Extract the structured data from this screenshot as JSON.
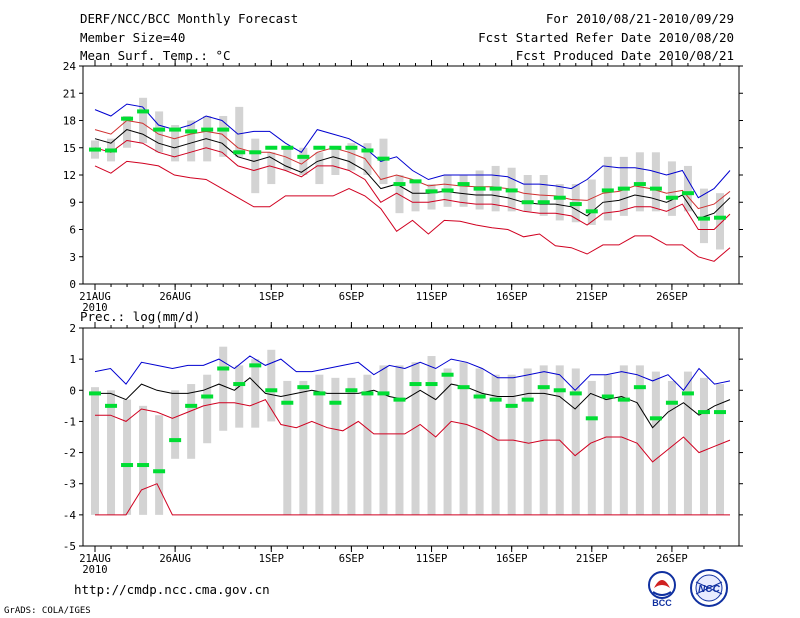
{
  "header": {
    "title": "DERF/NCC/BCC Monthly Forecast",
    "member_size": "Member Size=40",
    "variable": "Mean Surf. Temp.: °C",
    "period": "For 2010/08/21-2010/09/29",
    "start_date": "Fcst Started Refer Date 2010/08/20",
    "produced_date": "Fcst Produced Date 2010/08/21"
  },
  "footer": {
    "url": "http://cmdp.ncc.cma.gov.cn",
    "credit": "GrADS: COLA/IGES",
    "logo_bcc": "BCC",
    "logo_ncc": "NCC"
  },
  "colors": {
    "box": "#d3d3d3",
    "median": "#00dd33",
    "mean": "#000000",
    "upper": "#0000d0",
    "lower": "#d00020",
    "axis": "#000000"
  },
  "chart_data": [
    {
      "type": "line",
      "title": "Mean Surf. Temp.: °C",
      "ylim": [
        0,
        24
      ],
      "yticks": [
        0,
        3,
        6,
        9,
        12,
        15,
        18,
        21,
        24
      ],
      "x_day_range": [
        1,
        40
      ],
      "xticks": [
        {
          "day": 1,
          "label": "21AUG",
          "sublabel": "2010"
        },
        {
          "day": 6,
          "label": "26AUG"
        },
        {
          "day": 12,
          "label": "1SEP"
        },
        {
          "day": 17,
          "label": "6SEP"
        },
        {
          "day": 22,
          "label": "11SEP"
        },
        {
          "day": 27,
          "label": "16SEP"
        },
        {
          "day": 32,
          "label": "21SEP"
        },
        {
          "day": 37,
          "label": "26SEP"
        }
      ],
      "box_low": [
        13.8,
        13.5,
        15.0,
        15.5,
        14.5,
        13.5,
        13.5,
        13.5,
        14.0,
        14.0,
        10.0,
        11.0,
        12.5,
        12.0,
        11.0,
        12.0,
        12.5,
        12.0,
        11.0,
        7.8,
        8.0,
        8.2,
        8.5,
        8.5,
        8.2,
        8.0,
        8.0,
        8.0,
        7.5,
        7.0,
        6.8,
        6.5,
        7.0,
        7.5,
        8.0,
        8.0,
        7.5,
        8.0,
        4.5,
        3.8
      ],
      "box_high": [
        15.8,
        16.0,
        18.5,
        20.5,
        19.0,
        17.5,
        18.0,
        18.5,
        18.5,
        19.5,
        16.0,
        14.5,
        15.2,
        15.0,
        14.5,
        15.0,
        15.5,
        15.5,
        16.0,
        12.0,
        11.5,
        11.0,
        12.0,
        12.0,
        12.5,
        13.0,
        12.8,
        12.0,
        12.0,
        11.0,
        11.0,
        11.5,
        14.0,
        14.0,
        14.5,
        14.5,
        13.5,
        13.0,
        10.5,
        10.0
      ],
      "median": [
        14.8,
        14.7,
        18.2,
        19.0,
        17.0,
        17.0,
        16.8,
        17.0,
        17.0,
        14.5,
        14.5,
        15.0,
        15.0,
        14.0,
        15.0,
        15.0,
        15.0,
        14.7,
        13.8,
        11.0,
        11.3,
        10.2,
        10.3,
        11.0,
        10.5,
        10.5,
        10.3,
        9.0,
        9.0,
        9.5,
        8.8,
        8.0,
        10.3,
        10.5,
        11.0,
        10.5,
        9.5,
        10.0,
        7.2,
        7.3
      ],
      "series": [
        {
          "name": "Upper",
          "values": [
            19.2,
            18.5,
            19.8,
            19.5,
            17.5,
            17.0,
            17.5,
            18.5,
            18.0,
            16.5,
            16.8,
            16.8,
            15.5,
            14.5,
            17.0,
            16.5,
            16.0,
            15.0,
            13.5,
            14.0,
            12.5,
            11.5,
            12.0,
            12.0,
            12.0,
            12.0,
            11.8,
            11.0,
            11.0,
            10.8,
            10.5,
            11.5,
            13.0,
            12.8,
            12.8,
            12.5,
            12.0,
            12.5,
            9.5,
            10.5,
            12.5
          ]
        },
        {
          "name": "Upper-mid",
          "values": [
            17.0,
            16.5,
            18.0,
            17.7,
            16.5,
            16.0,
            16.5,
            16.8,
            16.5,
            15.0,
            14.5,
            14.5,
            14.0,
            13.2,
            14.5,
            15.0,
            14.5,
            13.8,
            11.5,
            12.0,
            11.5,
            10.8,
            11.0,
            10.8,
            10.7,
            10.7,
            10.5,
            10.0,
            9.8,
            9.7,
            9.3,
            9.2,
            10.0,
            10.2,
            10.8,
            10.5,
            10.0,
            10.3,
            8.3,
            8.8,
            10.2
          ]
        },
        {
          "name": "Ensemble mean",
          "values": [
            16.0,
            15.5,
            17.0,
            16.5,
            15.5,
            15.0,
            15.5,
            16.0,
            15.5,
            14.0,
            13.5,
            14.0,
            13.0,
            12.3,
            13.5,
            14.0,
            13.5,
            12.5,
            10.5,
            11.0,
            10.0,
            10.0,
            10.2,
            10.0,
            9.8,
            9.8,
            9.5,
            9.0,
            8.8,
            8.8,
            8.5,
            7.5,
            9.0,
            9.2,
            9.8,
            9.5,
            9.0,
            9.8,
            7.2,
            7.8,
            9.5
          ]
        },
        {
          "name": "Lower-mid",
          "values": [
            15.0,
            14.5,
            15.8,
            15.5,
            14.5,
            14.0,
            14.5,
            15.0,
            14.5,
            13.0,
            12.5,
            13.0,
            12.5,
            11.8,
            13.0,
            13.0,
            12.5,
            11.5,
            9.0,
            10.0,
            9.0,
            9.0,
            9.3,
            9.0,
            8.8,
            8.8,
            8.5,
            8.0,
            7.8,
            7.8,
            7.5,
            6.5,
            7.8,
            8.0,
            8.5,
            8.5,
            8.0,
            8.8,
            6.0,
            6.0,
            7.7
          ]
        },
        {
          "name": "Lower",
          "values": [
            13.0,
            12.2,
            13.5,
            13.3,
            13.0,
            12.0,
            11.7,
            11.5,
            10.5,
            9.5,
            8.5,
            8.5,
            9.7,
            9.7,
            9.7,
            9.7,
            10.5,
            9.7,
            8.3,
            5.8,
            7.0,
            5.5,
            7.0,
            6.9,
            6.5,
            6.2,
            6.0,
            5.2,
            5.5,
            4.2,
            4.0,
            3.3,
            4.3,
            4.3,
            5.3,
            5.3,
            4.3,
            4.3,
            3.0,
            2.5,
            4.0
          ]
        }
      ]
    },
    {
      "type": "line",
      "title": "Prec.: log(mm/d)",
      "ylim": [
        -5,
        2
      ],
      "yticks": [
        -5,
        -4,
        -3,
        -2,
        -1,
        0,
        1,
        2
      ],
      "x_day_range": [
        1,
        40
      ],
      "xticks": [
        {
          "day": 1,
          "label": "21AUG",
          "sublabel": "2010"
        },
        {
          "day": 6,
          "label": "26AUG"
        },
        {
          "day": 12,
          "label": "1SEP"
        },
        {
          "day": 17,
          "label": "6SEP"
        },
        {
          "day": 22,
          "label": "11SEP"
        },
        {
          "day": 27,
          "label": "16SEP"
        },
        {
          "day": 32,
          "label": "21SEP"
        },
        {
          "day": 37,
          "label": "26SEP"
        }
      ],
      "box_low": [
        -4,
        -4,
        -4,
        -4,
        -4,
        -2.2,
        -2.2,
        -1.7,
        -1.3,
        -1.2,
        -1.2,
        -1.0,
        -4,
        -4,
        -4,
        -4,
        -4,
        -4,
        -4,
        -4,
        -4,
        -4,
        -4,
        -4,
        -4,
        -4,
        -4,
        -4,
        -4,
        -4,
        -4,
        -4,
        -4,
        -4,
        -4,
        -4,
        -4,
        -4,
        -4,
        -4
      ],
      "box_high": [
        0.1,
        0.0,
        -0.3,
        -0.5,
        -0.8,
        0.0,
        0.2,
        0.5,
        1.4,
        0.8,
        1.0,
        1.3,
        0.3,
        0.3,
        0.5,
        0.4,
        0.4,
        0.5,
        0.8,
        0.8,
        0.9,
        1.1,
        0.7,
        0.9,
        0.7,
        0.5,
        0.5,
        0.7,
        0.8,
        0.8,
        0.7,
        0.3,
        0.5,
        0.8,
        0.8,
        0.6,
        0.3,
        0.6,
        0.4,
        0.2
      ],
      "median": [
        -0.1,
        -0.5,
        -2.4,
        -2.4,
        -2.6,
        -1.6,
        -0.5,
        -0.2,
        0.7,
        0.2,
        0.8,
        0.0,
        -0.4,
        0.1,
        -0.1,
        -0.4,
        0.0,
        -0.1,
        -0.1,
        -0.3,
        0.2,
        0.2,
        0.5,
        0.1,
        -0.2,
        -0.3,
        -0.5,
        -0.3,
        0.1,
        0.0,
        -0.1,
        -0.9,
        -0.2,
        -0.3,
        0.1,
        -0.9,
        -0.4,
        -0.1,
        -0.7,
        -0.7
      ],
      "series": [
        {
          "name": "Upper",
          "values": [
            0.6,
            0.7,
            0.2,
            0.9,
            0.8,
            0.7,
            0.8,
            0.8,
            1.0,
            0.7,
            1.1,
            0.8,
            1.0,
            0.6,
            0.6,
            0.7,
            0.8,
            0.9,
            0.5,
            0.8,
            0.7,
            0.9,
            0.7,
            1.0,
            0.9,
            0.7,
            0.4,
            0.4,
            0.5,
            0.6,
            0.5,
            0.0,
            0.5,
            0.5,
            0.6,
            0.5,
            0.3,
            0.5,
            0.0,
            0.7,
            0.2,
            0.3
          ]
        },
        {
          "name": "Ensemble mean",
          "values": [
            -0.1,
            -0.1,
            -0.3,
            0.2,
            0.0,
            -0.1,
            -0.1,
            0.0,
            0.2,
            0.0,
            0.4,
            -0.1,
            -0.2,
            -0.1,
            0.0,
            -0.1,
            -0.1,
            -0.1,
            0.0,
            -0.2,
            -0.3,
            0.0,
            -0.3,
            0.2,
            0.1,
            -0.1,
            -0.2,
            -0.2,
            -0.1,
            -0.1,
            -0.2,
            -0.6,
            -0.1,
            -0.3,
            -0.2,
            -0.4,
            -1.2,
            -0.7,
            -0.4,
            -0.8,
            -0.5,
            -0.3
          ]
        },
        {
          "name": "Lower",
          "values": [
            -0.8,
            -0.8,
            -1.0,
            -0.6,
            -0.7,
            -0.9,
            -0.7,
            -0.5,
            -0.4,
            -0.4,
            -0.5,
            -0.3,
            -1.1,
            -1.2,
            -1.0,
            -1.2,
            -1.3,
            -1.0,
            -1.4,
            -1.4,
            -1.4,
            -1.1,
            -1.5,
            -1.0,
            -1.1,
            -1.3,
            -1.6,
            -1.6,
            -1.7,
            -1.6,
            -1.6,
            -2.1,
            -1.7,
            -1.5,
            -1.5,
            -1.7,
            -2.3,
            -1.9,
            -1.5,
            -2.0,
            -1.8,
            -1.6
          ]
        },
        {
          "name": "Lowest",
          "values": [
            -4,
            -4,
            -4,
            -3.2,
            -3.0,
            -4,
            -4,
            -4,
            -4,
            -4,
            -4,
            -4,
            -4,
            -4,
            -4,
            -4,
            -4,
            -4,
            -4,
            -4,
            -4,
            -4,
            -4,
            -4,
            -4,
            -4,
            -4,
            -4,
            -4,
            -4,
            -4,
            -4,
            -4,
            -4,
            -4,
            -4,
            -4,
            -4,
            -4,
            -4,
            -4,
            -4
          ]
        }
      ]
    }
  ]
}
